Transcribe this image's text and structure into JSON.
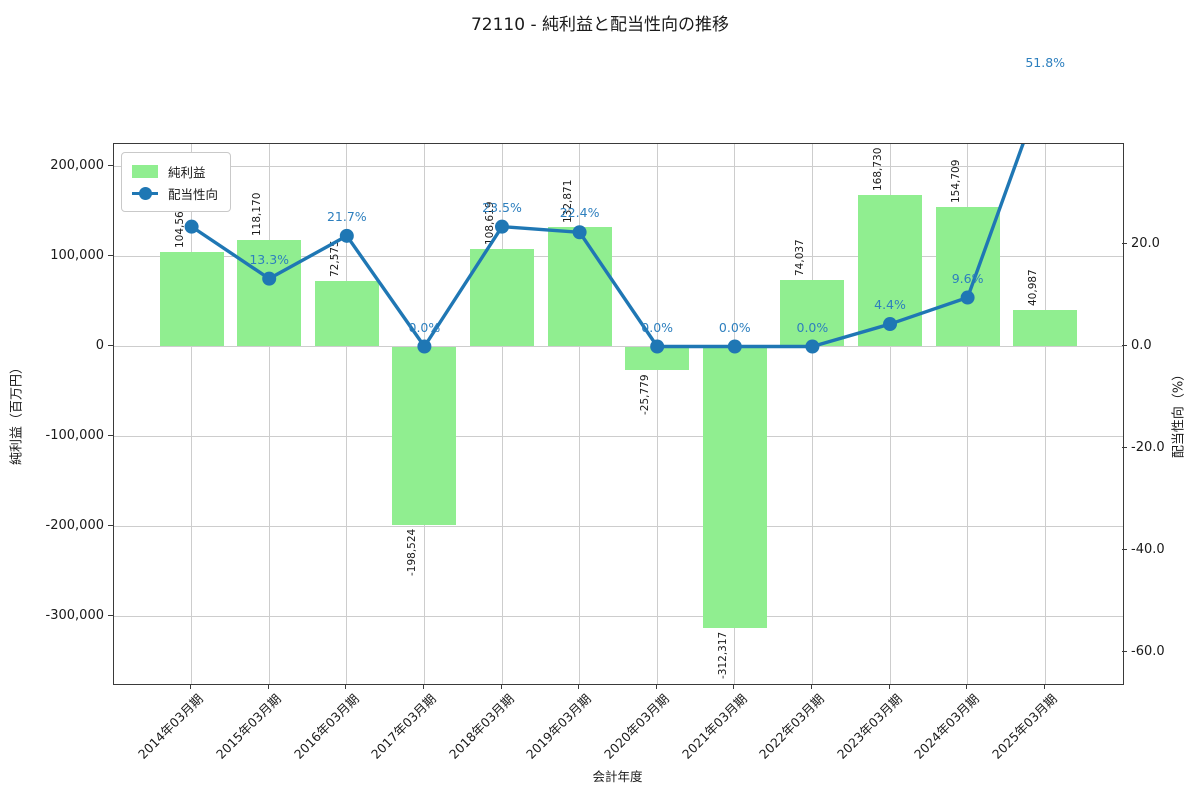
{
  "chart_data": {
    "type": "combo-bar-line",
    "title": "72110 - 純利益と配当性向の推移",
    "xlabel": "会計年度",
    "ylabel_left": "純利益（百万円）",
    "ylabel_right": "配当性向（%）",
    "categories": [
      "2014年03月期",
      "2015年03月期",
      "2016年03月期",
      "2017年03月期",
      "2018年03月期",
      "2019年03月期",
      "2020年03月期",
      "2021年03月期",
      "2022年03月期",
      "2023年03月期",
      "2024年03月期",
      "2025年03月期"
    ],
    "series": [
      {
        "name": "純利益",
        "type": "bar",
        "color": "#90ee90",
        "values": [
          104564,
          118170,
          72575,
          -198524,
          108619,
          132871,
          -25779,
          -312317,
          74037,
          168730,
          154709,
          40987
        ],
        "value_labels": [
          "104,564",
          "118,170",
          "72,575",
          "-198,524",
          "108,619",
          "132,871",
          "-25,779",
          "-312,317",
          "74,037",
          "168,730",
          "154,709",
          "40,987"
        ]
      },
      {
        "name": "配当性向",
        "type": "line",
        "color": "#1f77b4",
        "values": [
          23.5,
          13.3,
          21.7,
          0.0,
          23.5,
          22.4,
          0.0,
          0.0,
          0.0,
          4.4,
          9.6,
          51.8
        ],
        "point_labels": [
          "23.5%",
          "13.3%",
          "21.7%",
          "0.0%",
          "23.5%",
          "22.4%",
          "0.0%",
          "0.0%",
          "0.0%",
          "4.4%",
          "9.6%",
          "51.8%"
        ]
      }
    ],
    "left_axis": {
      "tick_values": [
        200000,
        100000,
        0,
        -100000,
        -200000,
        -300000
      ],
      "tick_labels": [
        "200,000",
        "100,000",
        "0",
        "-100,000",
        "-200,000",
        "-300,000"
      ],
      "range": [
        -375000,
        225000
      ]
    },
    "right_axis": {
      "tick_values": [
        20,
        0,
        -20,
        -40,
        -60
      ],
      "tick_labels": [
        "20.0",
        "0.0",
        "-20.0",
        "-40.0",
        "-60.0"
      ],
      "range": [
        -66.4,
        39.9
      ]
    },
    "legend": {
      "items": [
        "純利益",
        "配当性向"
      ],
      "position": "upper-left"
    },
    "grid": true,
    "colors": {
      "bar": "#90ee90",
      "line": "#1f77b4",
      "grid": "#cdcdcd",
      "pct_label": "#2d7fbe",
      "text": "#1a1a1a"
    }
  }
}
